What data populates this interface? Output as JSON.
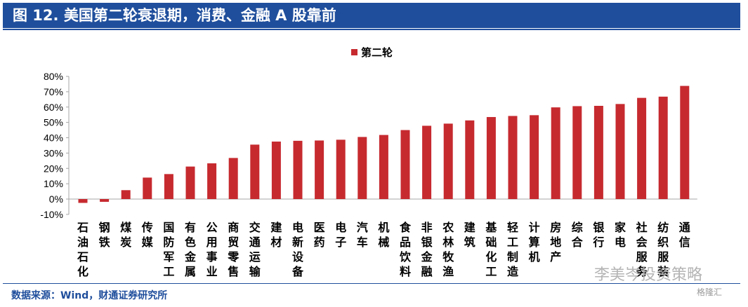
{
  "title": "图 12. 美国第二轮衰退期，消费、金融 A 股靠前",
  "source": "数据来源：Wind，财通证券研究所",
  "watermark": "李美岑投资策略",
  "badge": "格隆汇",
  "colors": {
    "bar": "#c62a2f",
    "header": "#1f4e9c",
    "axis": "#a6a6a6"
  },
  "chart_data": {
    "type": "bar",
    "categories": [
      "石油石化",
      "钢铁",
      "煤炭",
      "传媒",
      "国防军工",
      "有色金属",
      "公用事业",
      "商贸零售",
      "交通运输",
      "建材",
      "电新设备",
      "医药",
      "电子",
      "汽车",
      "机械",
      "食品饮料",
      "非银金融",
      "农林牧渔",
      "建筑",
      "基础化工",
      "轻工制造",
      "计算机",
      "房地产",
      "综合",
      "银行",
      "家电",
      "社会服务",
      "纺织服装",
      "通信"
    ],
    "series": [
      {
        "name": "第二轮",
        "values": [
          -2.5,
          -1.8,
          5.8,
          14.0,
          16.3,
          21.2,
          23.3,
          26.8,
          35.5,
          37.5,
          38.0,
          38.2,
          38.7,
          40.5,
          41.8,
          45.0,
          47.8,
          49.2,
          51.3,
          53.5,
          54.2,
          54.7,
          59.8,
          60.6,
          60.8,
          62.0,
          66.0,
          66.8,
          73.8
        ]
      }
    ],
    "yticks": [
      "80%",
      "70%",
      "60%",
      "50%",
      "40%",
      "30%",
      "20%",
      "10%",
      "0%",
      "-10%"
    ],
    "ylim": [
      -10,
      80
    ],
    "legend_position": "top-center",
    "grid": false
  }
}
